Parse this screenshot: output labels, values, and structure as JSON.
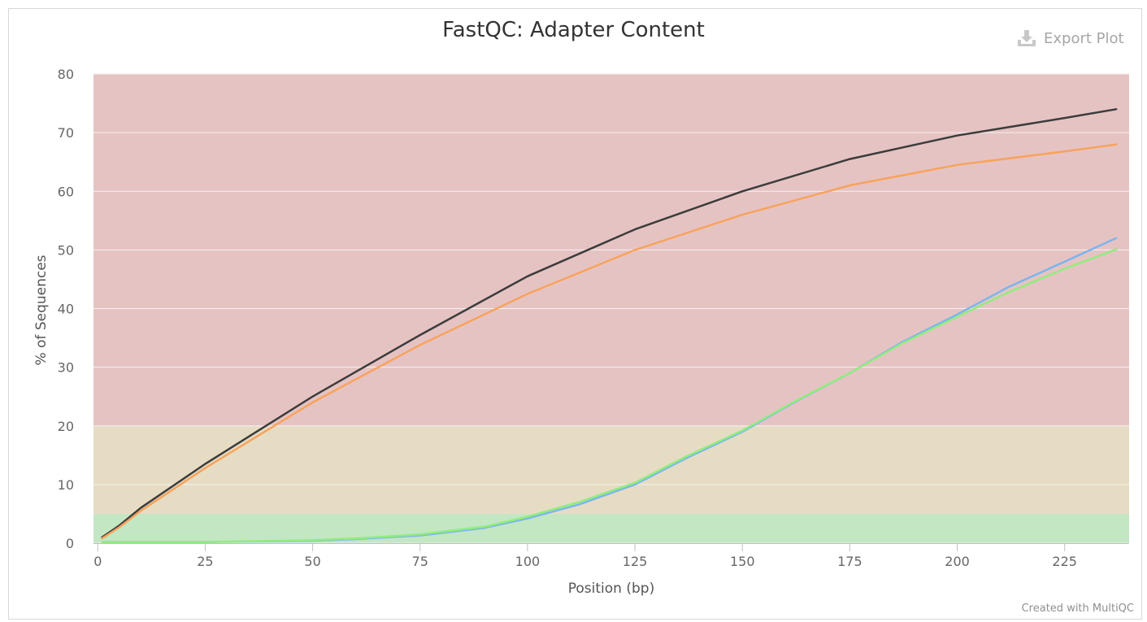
{
  "header": {
    "title": "FastQC: Adapter Content",
    "export_label": "Export Plot",
    "credit": "Created with MultiQC"
  },
  "chart_data": {
    "type": "line",
    "title": "FastQC: Adapter Content",
    "xlabel": "Position (bp)",
    "ylabel": "% of Sequences",
    "xlim": [
      -1,
      240
    ],
    "ylim": [
      0,
      80
    ],
    "x_ticks": [
      0,
      25,
      50,
      75,
      100,
      125,
      150,
      175,
      200,
      225
    ],
    "y_ticks": [
      0,
      10,
      20,
      30,
      40,
      50,
      60,
      70,
      80
    ],
    "grid": true,
    "legend": "none",
    "bands": [
      {
        "from": 0,
        "to": 5,
        "color": "#c3e6c3"
      },
      {
        "from": 5,
        "to": 20,
        "color": "#e6dcc3"
      },
      {
        "from": 20,
        "to": 80,
        "color": "#e6c3c3"
      }
    ],
    "series": [
      {
        "color": "#3c3c3c",
        "x": [
          1,
          5,
          10,
          25,
          50,
          75,
          100,
          125,
          150,
          175,
          200,
          225,
          237
        ],
        "y": [
          1.0,
          3.0,
          6.0,
          13.5,
          25.0,
          35.5,
          45.5,
          53.5,
          60.0,
          65.5,
          69.5,
          72.5,
          74.0
        ]
      },
      {
        "color": "#f7a35c",
        "x": [
          1,
          5,
          10,
          25,
          50,
          75,
          100,
          125,
          150,
          175,
          200,
          225,
          237
        ],
        "y": [
          0.8,
          2.7,
          5.5,
          12.8,
          24.0,
          33.8,
          42.5,
          50.0,
          56.0,
          61.0,
          64.5,
          66.8,
          68.0
        ]
      },
      {
        "color": "#7cb5ec",
        "x": [
          1,
          25,
          50,
          60,
          75,
          90,
          100,
          112,
          125,
          137,
          150,
          162,
          175,
          187,
          200,
          212,
          225,
          237
        ],
        "y": [
          0.2,
          0.2,
          0.4,
          0.7,
          1.3,
          2.6,
          4.2,
          6.6,
          10.0,
          14.5,
          19.0,
          24.0,
          29.0,
          34.2,
          39.0,
          43.7,
          48.0,
          52.0
        ]
      },
      {
        "color": "#90ed7d",
        "x": [
          1,
          25,
          50,
          60,
          75,
          90,
          100,
          112,
          125,
          137,
          150,
          162,
          175,
          187,
          200,
          212,
          225,
          237
        ],
        "y": [
          0.2,
          0.2,
          0.5,
          0.8,
          1.5,
          2.8,
          4.5,
          7.0,
          10.3,
          14.8,
          19.2,
          24.1,
          29.0,
          34.0,
          38.6,
          42.8,
          46.8,
          50.1
        ]
      }
    ]
  }
}
